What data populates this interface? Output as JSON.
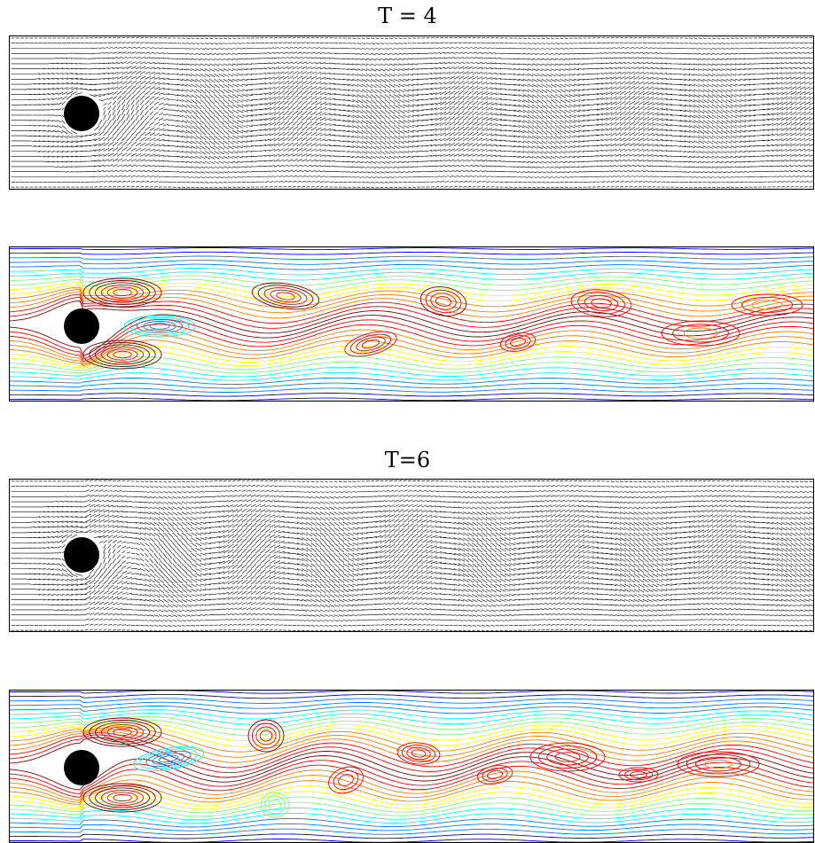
{
  "figure": {
    "snapshots": [
      {
        "title": "T = 4",
        "vector_field": {
          "icon": "velocity-quiver",
          "obstacle": "cylinder"
        },
        "contour_field": {
          "icon": "streamline-contours",
          "obstacle": "cylinder",
          "colormap": [
            "#00008f",
            "#0000ff",
            "#007fff",
            "#00ffff",
            "#7fff7f",
            "#ffff00",
            "#ff7f00",
            "#ff0000",
            "#7f0000"
          ]
        }
      },
      {
        "title": "T=6",
        "vector_field": {
          "icon": "velocity-quiver",
          "obstacle": "cylinder"
        },
        "contour_field": {
          "icon": "streamline-contours",
          "obstacle": "cylinder",
          "colormap": [
            "#00008f",
            "#0000ff",
            "#007fff",
            "#00ffff",
            "#7fff7f",
            "#ffff00",
            "#ff7f00",
            "#ff0000",
            "#7f0000"
          ]
        }
      }
    ]
  }
}
